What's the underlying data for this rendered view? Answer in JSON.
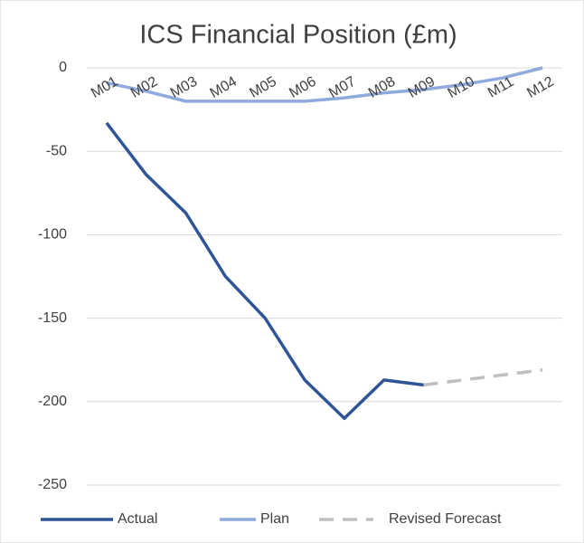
{
  "chart_data": {
    "type": "line",
    "title": "ICS Financial Position (£m)",
    "categories": [
      "M01",
      "M02",
      "M03",
      "M04",
      "M05",
      "M06",
      "M07",
      "M08",
      "M09",
      "M10",
      "M11",
      "M12"
    ],
    "series": [
      {
        "name": "Actual",
        "color": "#2f5597",
        "values": [
          -33,
          -64,
          -87,
          -125,
          -150,
          -187,
          -210,
          -187,
          -190,
          null,
          null,
          null
        ]
      },
      {
        "name": "Plan",
        "color": "#8faadc",
        "values": [
          -9,
          -14,
          -20,
          -20,
          -20,
          -20,
          -18,
          -15,
          -13,
          -10,
          -6,
          0
        ]
      },
      {
        "name": "Revised Forecast",
        "color": "#bfbfbf",
        "dashed": true,
        "values": [
          null,
          null,
          null,
          null,
          null,
          null,
          null,
          null,
          -190,
          -187,
          -184,
          -181
        ]
      }
    ],
    "ylim": [
      -250,
      0
    ],
    "yticks": [
      0,
      -50,
      -100,
      -150,
      -200,
      -250
    ],
    "grid": true,
    "legend": "bottom"
  }
}
